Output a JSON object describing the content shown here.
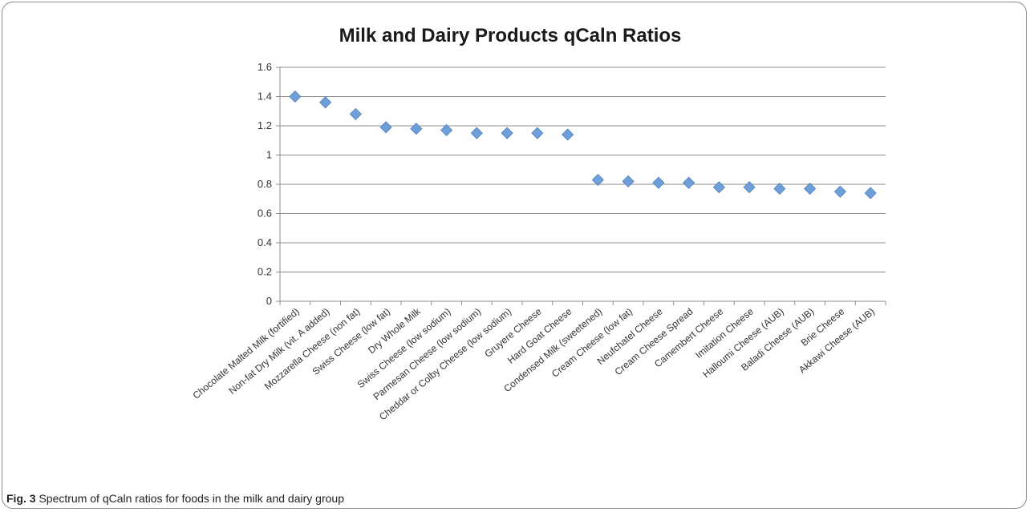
{
  "caption": {
    "label": "Fig. 3",
    "text": "Spectrum of qCaln ratios for foods in the milk and dairy group"
  },
  "chart_data": {
    "type": "scatter",
    "title": "Milk and Dairy Products qCaln Ratios",
    "xlabel": "",
    "ylabel": "",
    "ylim": [
      0,
      1.6
    ],
    "yticks": [
      0,
      0.2,
      0.4,
      0.6,
      0.8,
      1,
      1.2,
      1.4,
      1.6
    ],
    "ytick_labels": [
      "0",
      "0.2",
      "0.4",
      "0.6",
      "0.8",
      "1",
      "1.2",
      "1.4",
      "1.6"
    ],
    "grid": true,
    "legend": "none",
    "marker": "diamond",
    "color": "#6f9fd8",
    "categories": [
      "Chocolate Malted Milk (fortified)",
      "Non-fat Dry Milk (vit. A added)",
      "Mozzarella Cheese (non fat)",
      "Swiss Cheese (low fat)",
      "Dry Whole Milk",
      "Swiss Cheese (low sodium)",
      "Parmesan Cheese (low sodium)",
      "Cheddar or Colby Cheese (low sodium)",
      "Gruyere Cheese",
      "Hard Goat Cheese",
      "Condensed Milk (sweetened)",
      "Cream Cheese (low fat)",
      "Neufchatel Cheese",
      "Cream Cheese Spread",
      "Camembert Cheese",
      "Imitation Cheese",
      "Halloumi Cheese (AUB)",
      "Baladi Cheese (AUB)",
      "Brie Cheese",
      "Akkawi Cheese (AUB)"
    ],
    "values": [
      1.4,
      1.36,
      1.28,
      1.19,
      1.18,
      1.17,
      1.15,
      1.15,
      1.15,
      1.14,
      0.83,
      0.82,
      0.81,
      0.81,
      0.78,
      0.78,
      0.77,
      0.77,
      0.75,
      0.74
    ]
  }
}
